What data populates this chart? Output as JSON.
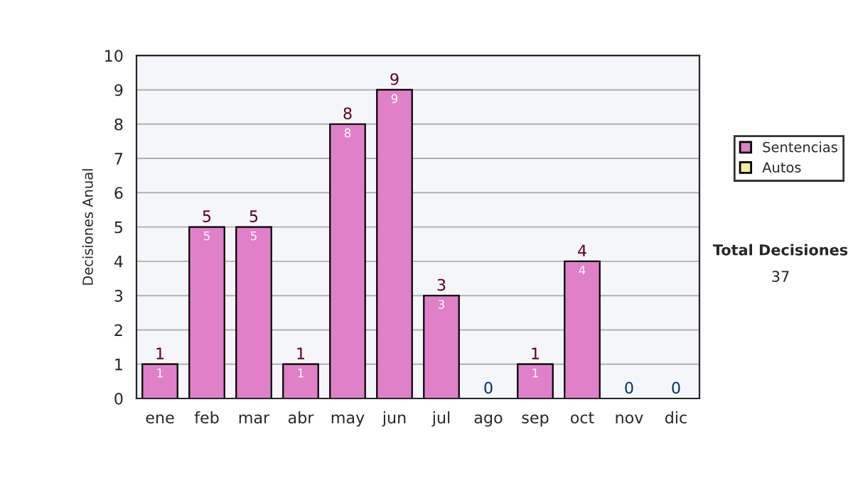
{
  "chart_data": {
    "type": "bar",
    "stacked": true,
    "ylabel": "Decisiones Anual",
    "categories": [
      "ene",
      "feb",
      "mar",
      "abr",
      "may",
      "jun",
      "jul",
      "ago",
      "sep",
      "oct",
      "nov",
      "dic"
    ],
    "series": [
      {
        "name": "Sentencias",
        "color": "#e080c8",
        "values": [
          1,
          5,
          5,
          1,
          8,
          9,
          3,
          0,
          1,
          4,
          0,
          0
        ],
        "value_labels": [
          "1",
          "5",
          "5",
          "1",
          "8",
          "9",
          "3",
          null,
          "1",
          "4",
          null,
          null
        ]
      },
      {
        "name": "Autos",
        "color": "#f0f0a0",
        "values": [
          0,
          0,
          0,
          0,
          0,
          0,
          0,
          0,
          0,
          0,
          0,
          0
        ]
      }
    ],
    "totals": [
      "1",
      "5",
      "5",
      "1",
      "8",
      "9",
      "3",
      "0",
      "1",
      "4",
      "0",
      "0"
    ],
    "ylim": [
      0,
      10
    ],
    "yticks": [
      0,
      1,
      2,
      3,
      4,
      5,
      6,
      7,
      8,
      9,
      10
    ],
    "grid": "y",
    "legend": "right",
    "annotations": [
      "Total Decisiones",
      "37"
    ]
  }
}
